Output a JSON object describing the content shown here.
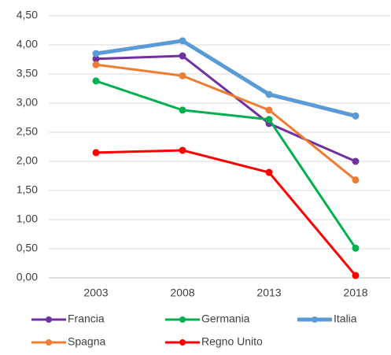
{
  "chart_data": {
    "type": "line",
    "categories": [
      "2003",
      "2008",
      "2013",
      "2018"
    ],
    "series": [
      {
        "name": "Francia",
        "color": "#7030a0",
        "values": [
          3.76,
          3.81,
          2.65,
          2.0
        ]
      },
      {
        "name": "Germania",
        "color": "#00b050",
        "values": [
          3.38,
          2.88,
          2.72,
          0.51
        ]
      },
      {
        "name": "Italia",
        "color": "#5b9bd5",
        "values": [
          3.85,
          4.07,
          3.15,
          2.78
        ]
      },
      {
        "name": "Spagna",
        "color": "#ed7d31",
        "values": [
          3.66,
          3.47,
          2.88,
          1.68
        ]
      },
      {
        "name": "Regno Unito",
        "color": "#ff0000",
        "values": [
          2.15,
          2.19,
          1.81,
          0.04
        ]
      }
    ],
    "ylim": [
      0,
      4.5
    ],
    "yticks": [
      {
        "value": 0,
        "label": "0,00"
      },
      {
        "value": 0.5,
        "label": "0,50"
      },
      {
        "value": 1,
        "label": "1,00"
      },
      {
        "value": 1.5,
        "label": "1,50"
      },
      {
        "value": 2,
        "label": "2,00"
      },
      {
        "value": 2.5,
        "label": "2,50"
      },
      {
        "value": 3,
        "label": "3,00"
      },
      {
        "value": 3.5,
        "label": "3,50"
      },
      {
        "value": 4,
        "label": "4,00"
      },
      {
        "value": 4.5,
        "label": "4,50"
      }
    ],
    "grid": true
  }
}
